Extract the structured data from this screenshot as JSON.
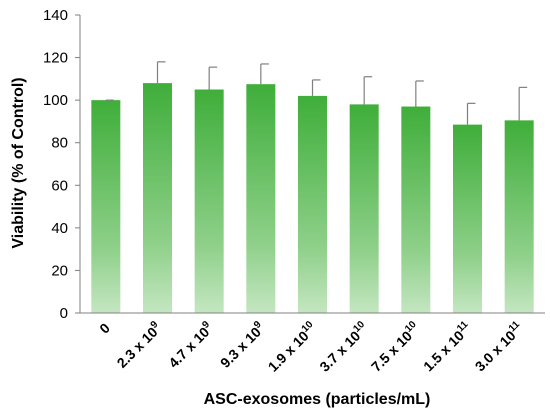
{
  "chart_data": {
    "type": "bar",
    "xlabel": "ASC-exosomes (particles/mL)",
    "ylabel": "Viability (% of Control)",
    "ylim": [
      0,
      140
    ],
    "yticks": [
      0,
      20,
      40,
      60,
      80,
      100,
      120,
      140
    ],
    "grid": false,
    "categories": [
      {
        "base": "0",
        "exp": ""
      },
      {
        "base": "2.3 x 10",
        "exp": "9"
      },
      {
        "base": "4.7 x 10",
        "exp": "9"
      },
      {
        "base": "9.3 x 10",
        "exp": "9"
      },
      {
        "base": "1.9 x 10",
        "exp": "10"
      },
      {
        "base": "3.7 x 10",
        "exp": "10"
      },
      {
        "base": "7.5 x 10",
        "exp": "10"
      },
      {
        "base": "1.5 x 10",
        "exp": "11"
      },
      {
        "base": "3.0 x 10",
        "exp": "11"
      }
    ],
    "values": [
      100,
      108,
      105,
      107.5,
      102,
      98,
      97,
      88.5,
      90.5
    ],
    "errors": [
      0,
      10,
      10.5,
      9.5,
      7.5,
      13,
      12,
      10,
      15.5
    ],
    "colors": {
      "bar_top": "#3fae3a",
      "bar_bottom": "#c4e6c1",
      "axis": "#808080",
      "error": "#7f7f7f"
    }
  }
}
